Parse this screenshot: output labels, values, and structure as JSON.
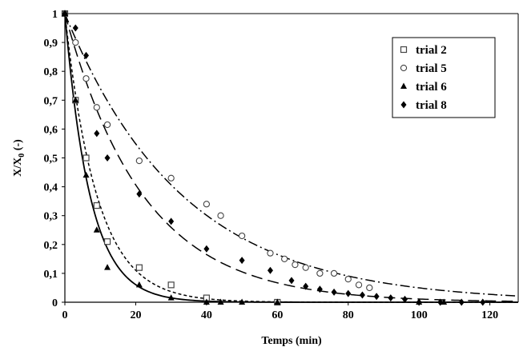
{
  "chart_data": {
    "type": "scatter",
    "xlabel": "Temps (min)",
    "ylabel": "X/X",
    "ylabel_sub": "0",
    "ylabel_unit": " (-)",
    "xlim": [
      0,
      128
    ],
    "ylim": [
      0,
      1
    ],
    "x_ticks": [
      "0",
      "20",
      "40",
      "60",
      "80",
      "100",
      "120"
    ],
    "x_tick_values": [
      0,
      20,
      40,
      60,
      80,
      100,
      120
    ],
    "y_ticks": [
      "0",
      "0,1",
      "0,2",
      "0,3",
      "0,4",
      "0,5",
      "0,6",
      "0,7",
      "0,8",
      "0,9",
      "1"
    ],
    "y_tick_values": [
      0,
      0.1,
      0.2,
      0.3,
      0.4,
      0.5,
      0.6,
      0.7,
      0.8,
      0.9,
      1
    ],
    "grid": false,
    "legend_position": "top-right",
    "series": [
      {
        "name": "trial 2",
        "marker": "square-open",
        "line": "dotted-short-dash",
        "k": 0.11,
        "points": [
          [
            0,
            1
          ],
          [
            3,
            0.7
          ],
          [
            6,
            0.5
          ],
          [
            9,
            0.335
          ],
          [
            12,
            0.21
          ],
          [
            21,
            0.12
          ],
          [
            30,
            0.06
          ],
          [
            40,
            0.015
          ],
          [
            60,
            0.0
          ]
        ]
      },
      {
        "name": "trial 5",
        "marker": "circle-open",
        "line": "dash-dot",
        "k": 0.03,
        "points": [
          [
            0,
            1
          ],
          [
            3,
            0.9
          ],
          [
            6,
            0.775
          ],
          [
            9,
            0.675
          ],
          [
            12,
            0.615
          ],
          [
            21,
            0.49
          ],
          [
            30,
            0.43
          ],
          [
            40,
            0.34
          ],
          [
            44,
            0.3
          ],
          [
            50,
            0.23
          ],
          [
            58,
            0.17
          ],
          [
            62,
            0.15
          ],
          [
            65,
            0.13
          ],
          [
            68,
            0.12
          ],
          [
            72,
            0.1
          ],
          [
            76,
            0.1
          ],
          [
            80,
            0.08
          ],
          [
            83,
            0.06
          ],
          [
            86,
            0.05
          ]
        ]
      },
      {
        "name": "trial 6",
        "marker": "triangle-filled",
        "line": "solid",
        "k": 0.14,
        "points": [
          [
            0,
            1
          ],
          [
            3,
            0.7
          ],
          [
            6,
            0.44
          ],
          [
            9,
            0.25
          ],
          [
            12,
            0.12
          ],
          [
            21,
            0.06
          ],
          [
            30,
            0.015
          ],
          [
            40,
            0.0
          ],
          [
            44,
            0.0
          ],
          [
            50,
            0.0
          ],
          [
            60,
            0.0
          ],
          [
            100,
            0.0
          ],
          [
            107,
            0.0
          ]
        ]
      },
      {
        "name": "trial 8",
        "marker": "diamond-filled",
        "line": "long-dash",
        "k": 0.045,
        "points": [
          [
            0,
            1
          ],
          [
            3,
            0.95
          ],
          [
            6,
            0.855
          ],
          [
            9,
            0.585
          ],
          [
            12,
            0.5
          ],
          [
            21,
            0.375
          ],
          [
            30,
            0.28
          ],
          [
            40,
            0.185
          ],
          [
            50,
            0.145
          ],
          [
            58,
            0.11
          ],
          [
            64,
            0.075
          ],
          [
            68,
            0.055
          ],
          [
            72,
            0.045
          ],
          [
            76,
            0.035
          ],
          [
            80,
            0.03
          ],
          [
            84,
            0.025
          ],
          [
            88,
            0.02
          ],
          [
            92,
            0.015
          ],
          [
            96,
            0.01
          ],
          [
            100,
            0.0
          ],
          [
            106,
            0.0
          ],
          [
            112,
            0.0
          ],
          [
            118,
            0.0
          ]
        ]
      }
    ]
  }
}
